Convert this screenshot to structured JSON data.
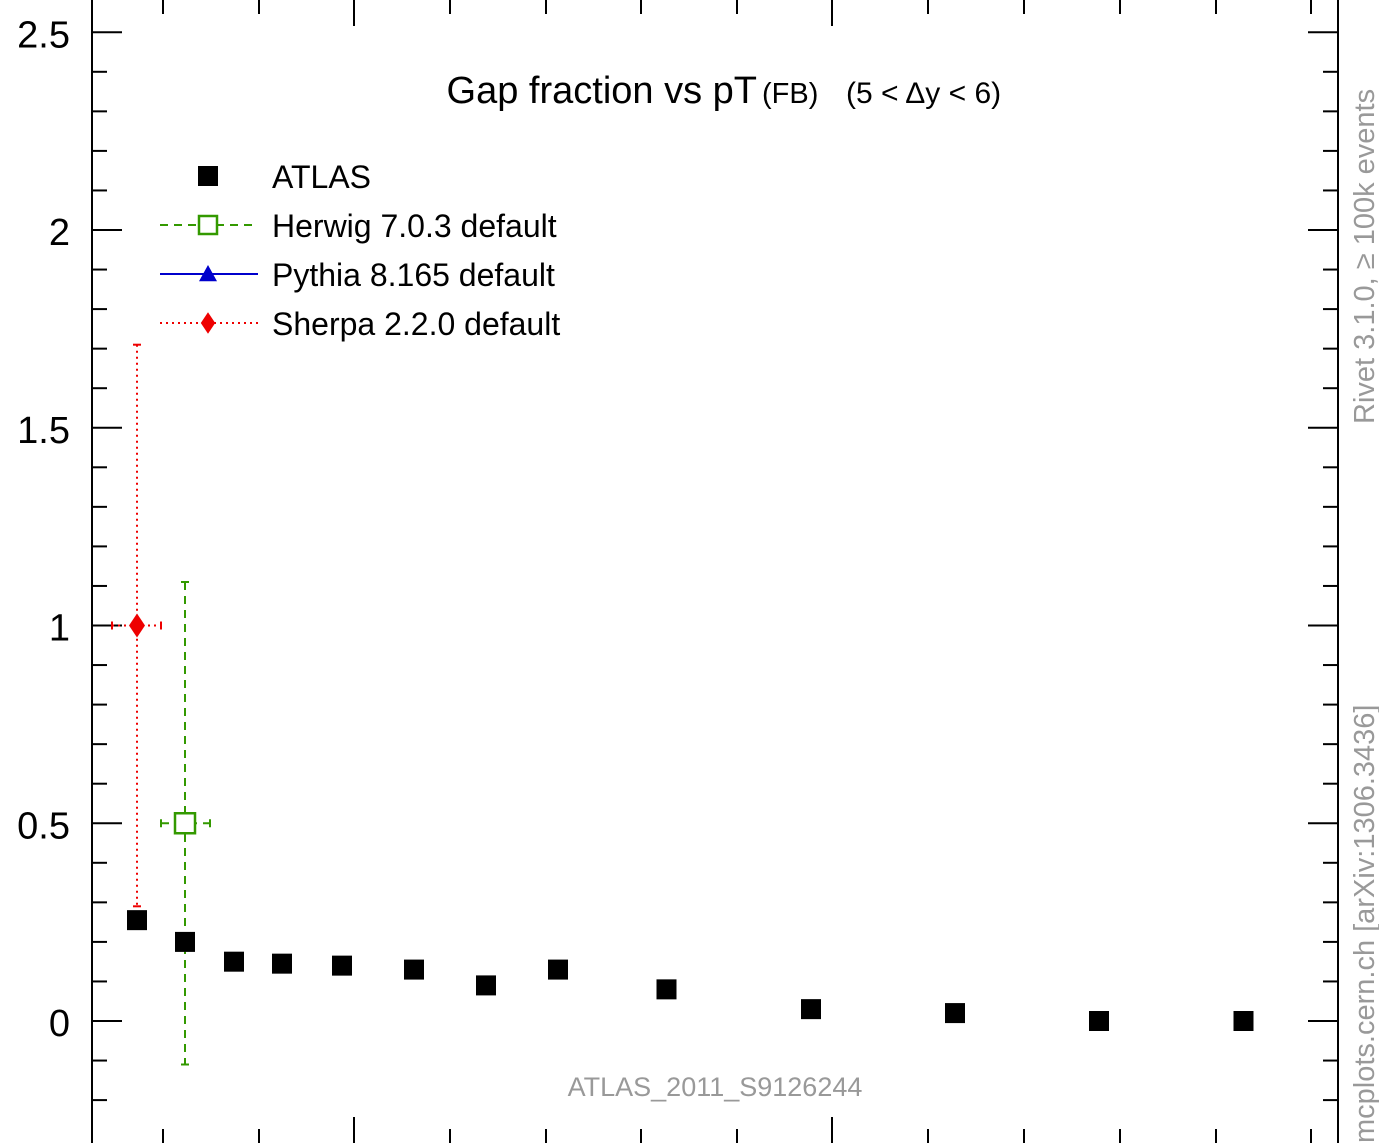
{
  "chart_data": {
    "type": "scatter",
    "title": "Gap fraction vs pT",
    "title_suffix": "(FB)",
    "title_range": "(5 < Δy < 6)",
    "xlabel": "",
    "ylabel": "",
    "ylim": [
      -0.3,
      2.55
    ],
    "y_ticks": [
      0,
      0.5,
      1,
      1.5,
      2,
      2.5
    ],
    "y_tick_labels": [
      "0",
      "0.5",
      "1",
      "1.5",
      "2",
      "2.5"
    ],
    "grid": false,
    "legend_position": "top-left",
    "x": [
      35,
      45,
      55,
      65,
      77.5,
      92.5,
      107.5,
      122.5,
      145,
      175,
      205,
      235,
      265
    ],
    "series": [
      {
        "name": "ATLAS",
        "color": "#000000",
        "marker": "square-filled",
        "line": "none",
        "points": [
          {
            "x": 35,
            "y": 0.255
          },
          {
            "x": 45,
            "y": 0.2
          },
          {
            "x": 55,
            "y": 0.15
          },
          {
            "x": 65,
            "y": 0.145
          },
          {
            "x": 77.5,
            "y": 0.14
          },
          {
            "x": 92.5,
            "y": 0.13
          },
          {
            "x": 107.5,
            "y": 0.09
          },
          {
            "x": 122.5,
            "y": 0.13
          },
          {
            "x": 145,
            "y": 0.08
          },
          {
            "x": 175,
            "y": 0.03
          },
          {
            "x": 205,
            "y": 0.02
          },
          {
            "x": 235,
            "y": 0.0
          },
          {
            "x": 265,
            "y": 0.0
          }
        ]
      },
      {
        "name": "Herwig 7.0.3 default",
        "color": "#339900",
        "marker": "square-open",
        "line": "dashed",
        "points": [
          {
            "x": 45,
            "y": 0.5,
            "yerr_low": 0.61,
            "yerr_high": 0.61,
            "xlow": 40,
            "xhigh": 50
          }
        ]
      },
      {
        "name": "Pythia 8.165 default",
        "color": "#0000cc",
        "marker": "triangle-filled",
        "line": "solid",
        "points": []
      },
      {
        "name": "Sherpa 2.2.0 default",
        "color": "#ee0000",
        "marker": "diamond-filled",
        "line": "dotted",
        "points": [
          {
            "x": 35,
            "y": 1.0,
            "yerr_low": 0.71,
            "yerr_high": 0.71,
            "xlow": 30,
            "xhigh": 40
          }
        ]
      }
    ],
    "analysis_label": "ATLAS_2011_S9126244",
    "side_label_top": "Rivet 3.1.0, ≥ 100k events",
    "side_label_bottom": "mcplots.cern.ch [arXiv:1306.3436]"
  }
}
